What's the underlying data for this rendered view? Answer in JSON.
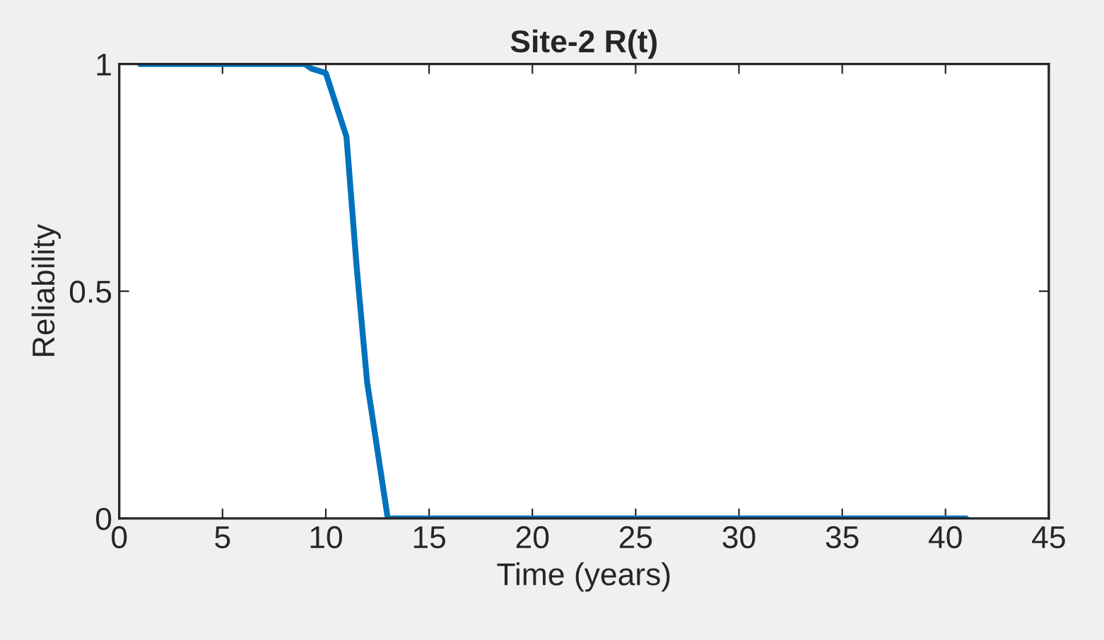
{
  "chart_data": {
    "type": "line",
    "title": "Site-2 R(t)",
    "xlabel": "Time (years)",
    "ylabel": "Reliability",
    "series": [
      {
        "color": "#0072bd",
        "x": [
          1,
          9,
          9.3,
          10,
          11,
          11.5,
          12,
          13,
          20,
          30,
          41
        ],
        "values": [
          1,
          1,
          0.99,
          0.98,
          0.84,
          0.55,
          0.3,
          0,
          0,
          0,
          0
        ]
      }
    ],
    "xlim": [
      0,
      45
    ],
    "xticks": [
      0,
      5,
      10,
      15,
      20,
      25,
      30,
      35,
      40,
      45
    ],
    "ylim": [
      0,
      1
    ],
    "yticks": [
      0,
      0.5,
      1
    ],
    "grid": false,
    "legend": false
  }
}
